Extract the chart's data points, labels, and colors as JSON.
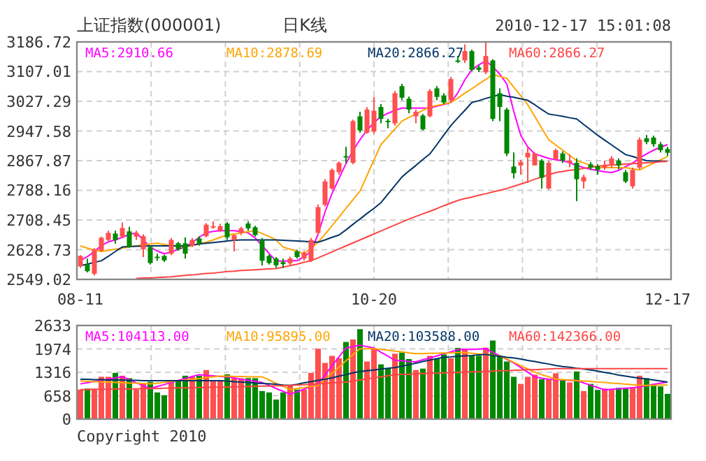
{
  "chart_data": [
    {
      "type": "candlestick",
      "title": "上证指数(000001)",
      "subtitle": "日K线",
      "annotations": [
        "2010-12-17 15:01:08"
      ],
      "categories": [
        "08-11",
        null,
        null,
        null,
        null,
        null,
        null,
        null,
        null,
        null,
        null,
        null,
        null,
        null,
        null,
        null,
        null,
        null,
        null,
        null,
        null,
        null,
        null,
        null,
        null,
        null,
        null,
        null,
        null,
        null,
        null,
        null,
        null,
        null,
        null,
        null,
        null,
        null,
        null,
        null,
        null,
        null,
        "10-20",
        null,
        null,
        null,
        null,
        null,
        null,
        null,
        null,
        null,
        null,
        null,
        null,
        null,
        null,
        null,
        null,
        null,
        null,
        null,
        null,
        null,
        null,
        null,
        null,
        null,
        null,
        null,
        null,
        null,
        null,
        null,
        null,
        null,
        null,
        null,
        null,
        null,
        null,
        null,
        null,
        null,
        "12-17"
      ],
      "ylim": [
        2549.02,
        3186.72
      ],
      "yticks": [
        2549.02,
        2628.73,
        2708.45,
        2788.16,
        2867.87,
        2947.58,
        3027.29,
        3107.01,
        3186.72
      ],
      "grid": true,
      "legend": "top",
      "ohlc": [
        [
          2584,
          2614,
          2580,
          2612
        ],
        [
          2589,
          2605,
          2568,
          2571
        ],
        [
          2564,
          2633,
          2560,
          2630
        ],
        [
          2626,
          2664,
          2624,
          2661
        ],
        [
          2655,
          2680,
          2651,
          2674
        ],
        [
          2672,
          2680,
          2645,
          2655
        ],
        [
          2664,
          2702,
          2660,
          2687
        ],
        [
          2678,
          2690,
          2634,
          2636
        ],
        [
          2664,
          2680,
          2655,
          2674
        ],
        [
          2630,
          2670,
          2609,
          2665
        ],
        [
          2636,
          2640,
          2589,
          2593
        ],
        [
          2610,
          2618,
          2599,
          2608
        ],
        [
          2612,
          2615,
          2596,
          2600
        ],
        [
          2618,
          2660,
          2614,
          2655
        ],
        [
          2646,
          2650,
          2626,
          2630
        ],
        [
          2646,
          2662,
          2605,
          2618
        ],
        [
          2639,
          2660,
          2636,
          2655
        ],
        [
          2659,
          2665,
          2640,
          2646
        ],
        [
          2665,
          2700,
          2662,
          2696
        ],
        [
          2689,
          2705,
          2685,
          2692
        ],
        [
          2680,
          2698,
          2676,
          2692
        ],
        [
          2699,
          2703,
          2655,
          2662
        ],
        [
          2655,
          2670,
          2624,
          2668
        ],
        [
          2674,
          2690,
          2668,
          2686
        ],
        [
          2699,
          2705,
          2680,
          2686
        ],
        [
          2689,
          2693,
          2664,
          2668
        ],
        [
          2655,
          2660,
          2586,
          2599
        ],
        [
          2612,
          2615,
          2589,
          2593
        ],
        [
          2605,
          2609,
          2580,
          2587
        ],
        [
          2595,
          2605,
          2580,
          2590
        ],
        [
          2592,
          2610,
          2588,
          2605
        ],
        [
          2624,
          2628,
          2605,
          2609
        ],
        [
          2605,
          2625,
          2600,
          2620
        ],
        [
          2599,
          2660,
          2596,
          2655
        ],
        [
          2674,
          2750,
          2670,
          2743
        ],
        [
          2749,
          2818,
          2745,
          2812
        ],
        [
          2793,
          2847,
          2790,
          2843
        ],
        [
          2837,
          2866,
          2830,
          2862
        ],
        [
          2880,
          2905,
          2862,
          2877
        ],
        [
          2862,
          2978,
          2858,
          2974
        ],
        [
          2987,
          2999,
          2943,
          2949
        ],
        [
          2943,
          3012,
          2940,
          3005
        ],
        [
          2946,
          3039,
          2940,
          3002
        ],
        [
          3012,
          3020,
          2968,
          2980
        ],
        [
          2975,
          2980,
          2955,
          2973
        ],
        [
          2968,
          3055,
          2962,
          3049
        ],
        [
          3068,
          3074,
          3030,
          3037
        ],
        [
          3034,
          3040,
          2995,
          3005
        ],
        [
          2987,
          3005,
          2968,
          2999
        ],
        [
          2989,
          2993,
          2949,
          2952
        ],
        [
          2987,
          3060,
          2984,
          3055
        ],
        [
          3062,
          3068,
          3030,
          3039
        ],
        [
          3043,
          3049,
          3020,
          3024
        ],
        [
          3030,
          3093,
          3024,
          3087
        ],
        [
          3137,
          3149,
          3130,
          3134
        ],
        [
          3137,
          3180,
          3130,
          3162
        ],
        [
          3162,
          3166,
          3108,
          3112
        ],
        [
          3118,
          3124,
          3106,
          3112
        ],
        [
          3105,
          3186,
          3100,
          3149
        ],
        [
          3137,
          3140,
          2974,
          2980
        ],
        [
          3049,
          3062,
          2974,
          3012
        ],
        [
          3005,
          3010,
          2880,
          2887
        ],
        [
          2852,
          2890,
          2820,
          2834
        ],
        [
          2855,
          2870,
          2830,
          2864
        ],
        [
          2877,
          2905,
          2808,
          2889
        ],
        [
          2855,
          2890,
          2855,
          2887
        ],
        [
          2868,
          2872,
          2793,
          2822
        ],
        [
          2793,
          2868,
          2790,
          2862
        ],
        [
          2872,
          2900,
          2868,
          2896
        ],
        [
          2887,
          2893,
          2862,
          2868
        ],
        [
          2862,
          2885,
          2850,
          2868
        ],
        [
          2862,
          2874,
          2759,
          2818
        ],
        [
          2812,
          2830,
          2793,
          2824
        ],
        [
          2858,
          2864,
          2843,
          2849
        ],
        [
          2853,
          2858,
          2830,
          2843
        ],
        [
          2849,
          2868,
          2843,
          2855
        ],
        [
          2855,
          2880,
          2849,
          2874
        ],
        [
          2868,
          2874,
          2845,
          2855
        ],
        [
          2837,
          2843,
          2808,
          2812
        ],
        [
          2799,
          2849,
          2793,
          2843
        ],
        [
          2849,
          2930,
          2845,
          2924
        ],
        [
          2928,
          2937,
          2912,
          2918
        ],
        [
          2930,
          2935,
          2905,
          2912
        ],
        [
          2912,
          2918,
          2890,
          2896
        ],
        [
          2899,
          2905,
          2880,
          2889
        ]
      ],
      "colors": [
        "#ff4f4f",
        "#008800",
        "#ff4f4f",
        "#ff4f4f",
        "#ff4f4f",
        "#008800",
        "#ff4f4f",
        "#008800",
        "#ff4f4f",
        "#ff4f4f",
        "#008800",
        "#008800",
        "#008800",
        "#ff4f4f",
        "#008800",
        "#008800",
        "#ff4f4f",
        "#008800",
        "#ff4f4f",
        "#ff4f4f",
        "#ff4f4f",
        "#008800",
        "#ff4f4f",
        "#ff4f4f",
        "#008800",
        "#008800",
        "#008800",
        "#008800",
        "#008800",
        "#008800",
        "#ff4f4f",
        "#008800",
        "#ff4f4f",
        "#ff4f4f",
        "#ff4f4f",
        "#ff4f4f",
        "#ff4f4f",
        "#ff4f4f",
        "#008800",
        "#ff4f4f",
        "#008800",
        "#ff4f4f",
        "#ff4f4f",
        "#008800",
        "#008800",
        "#ff4f4f",
        "#008800",
        "#008800",
        "#ff4f4f",
        "#008800",
        "#ff4f4f",
        "#008800",
        "#008800",
        "#ff4f4f",
        "#008800",
        "#ff4f4f",
        "#008800",
        "#008800",
        "#ff4f4f",
        "#008800",
        "#008800",
        "#008800",
        "#008800",
        "#ff4f4f",
        "#ff4f4f",
        "#ff4f4f",
        "#008800",
        "#ff4f4f",
        "#ff4f4f",
        "#008800",
        "#ff4f4f",
        "#008800",
        "#ff4f4f",
        "#008800",
        "#008800",
        "#ff4f4f",
        "#ff4f4f",
        "#008800",
        "#008800",
        "#ff4f4f",
        "#ff4f4f",
        "#008800",
        "#008800",
        "#008800",
        "#008800"
      ],
      "series": [
        {
          "type": "line",
          "name": "MA5:2910.66",
          "color": "#ff00ff",
          "values": [
            2600,
            2610,
            2624,
            2640,
            2650,
            2655,
            2662,
            2670,
            2674,
            2655,
            2636,
            2625,
            2618,
            2622,
            2630,
            2636,
            2648,
            2662,
            2674,
            2678,
            2680,
            2680,
            2680,
            2677,
            2674,
            2660,
            2640,
            2618,
            2599,
            2598,
            2599,
            2599,
            2610,
            2624,
            2670,
            2730,
            2780,
            2820,
            2860,
            2895,
            2924,
            2950,
            2970,
            2986,
            2995,
            3003,
            3009,
            3009,
            3009,
            3009,
            3009,
            3014,
            3019,
            3024,
            3050,
            3085,
            3112,
            3125,
            3136,
            3120,
            3100,
            3074,
            3000,
            2936,
            2905,
            2886,
            2880,
            2874,
            2870,
            2868,
            2862,
            2855,
            2849,
            2845,
            2841,
            2838,
            2836,
            2842,
            2852,
            2861,
            2875,
            2886,
            2896,
            2904,
            2911
          ]
        },
        {
          "type": "line",
          "name": "MA10:2878.69",
          "color": "#ffa500",
          "values": [
            2639,
            2633,
            2628,
            2624,
            2627,
            2630,
            2633,
            2636,
            2639,
            2642,
            2644,
            2646,
            2643,
            2640,
            2638,
            2636,
            2640,
            2645,
            2649,
            2655,
            2662,
            2668,
            2671,
            2674,
            2677,
            2680,
            2672,
            2664,
            2655,
            2636,
            2630,
            2624,
            2618,
            2632,
            2649,
            2670,
            2693,
            2716,
            2740,
            2763,
            2786,
            2828,
            2870,
            2911,
            2932,
            2953,
            2974,
            2984,
            2993,
            3003,
            3012,
            3016,
            3020,
            3024,
            3036,
            3049,
            3061,
            3074,
            3086,
            3099,
            3094,
            3089,
            3065,
            3042,
            3018,
            2987,
            2955,
            2924,
            2910,
            2896,
            2882,
            2868,
            2862,
            2855,
            2849,
            2849,
            2849,
            2849,
            2849,
            2846,
            2843,
            2852,
            2861,
            2870,
            2879
          ]
        },
        {
          "type": "line",
          "name": "MA20:2866.27",
          "color": "#003366",
          "values": [
            2586,
            2590,
            2595,
            2599,
            2611,
            2624,
            2636,
            2637,
            2638,
            2638,
            2639,
            2639,
            2639,
            2639,
            2639,
            2639,
            2641,
            2644,
            2646,
            2648,
            2650,
            2652,
            2654,
            2655,
            2655,
            2655,
            2655,
            2655,
            2655,
            2654,
            2653,
            2652,
            2651,
            2650,
            2649,
            2655,
            2662,
            2668,
            2682,
            2697,
            2711,
            2726,
            2740,
            2755,
            2778,
            2801,
            2824,
            2840,
            2855,
            2871,
            2886,
            2911,
            2937,
            2962,
            2983,
            3003,
            3024,
            3029,
            3035,
            3040,
            3045,
            3041,
            3038,
            3034,
            3030,
            3018,
            3005,
            2993,
            2990,
            2987,
            2983,
            2980,
            2965,
            2951,
            2936,
            2923,
            2910,
            2897,
            2884,
            2879,
            2873,
            2868,
            2867,
            2867,
            2866
          ]
        },
        {
          "type": "line",
          "name": "MA60:2866.27",
          "color": "#ff4444",
          "values": [
            null,
            null,
            null,
            null,
            null,
            null,
            null,
            null,
            2552,
            2553,
            2553,
            2554,
            2555,
            2556,
            2558,
            2560,
            2561,
            2563,
            2565,
            2566,
            2568,
            2570,
            2571,
            2573,
            2574,
            2575,
            2576,
            2577,
            2578,
            2582,
            2586,
            2590,
            2595,
            2599,
            2607,
            2615,
            2623,
            2631,
            2639,
            2647,
            2655,
            2663,
            2671,
            2679,
            2687,
            2695,
            2703,
            2711,
            2718,
            2725,
            2732,
            2739,
            2747,
            2754,
            2761,
            2766,
            2770,
            2775,
            2779,
            2784,
            2788,
            2793,
            2799,
            2805,
            2811,
            2818,
            2824,
            2830,
            2836,
            2839,
            2842,
            2844,
            2847,
            2850,
            2853,
            2855,
            2856,
            2857,
            2859,
            2860,
            2861,
            2862,
            2863,
            2865,
            2866
          ]
        }
      ]
    },
    {
      "type": "bar",
      "annotations": [
        "Copyright 2010"
      ],
      "categories": [
        null,
        null,
        null,
        null,
        null,
        null,
        null,
        null,
        null,
        null,
        null,
        null,
        null,
        null,
        null,
        null,
        null,
        null,
        null,
        null,
        null,
        null,
        null,
        null,
        null,
        null,
        null,
        null,
        null,
        null,
        null,
        null,
        null,
        null,
        null,
        null,
        null,
        null,
        null,
        null,
        null,
        null,
        null,
        null,
        null,
        null,
        null,
        null,
        null,
        null,
        null,
        null,
        null,
        null,
        null,
        null,
        null,
        null,
        null,
        null,
        null,
        null,
        null,
        null,
        null,
        null,
        null,
        null,
        null,
        null,
        null,
        null,
        null,
        null,
        null,
        null,
        null,
        null,
        null,
        null,
        null,
        null,
        null,
        null,
        null
      ],
      "ylim": [
        0,
        2633
      ],
      "yticks": [
        0,
        658,
        1316,
        1974,
        2633
      ],
      "tick_labels": "y",
      "grid": true,
      "legend": "top",
      "series": [
        {
          "type": "bar",
          "values": [
            830,
            860,
            830,
            1190,
            1190,
            1300,
            1220,
            1150,
            830,
            990,
            1050,
            750,
            670,
            1070,
            1070,
            1220,
            1190,
            1220,
            1380,
            1070,
            1070,
            1260,
            1150,
            1150,
            1150,
            1150,
            790,
            750,
            550,
            750,
            950,
            830,
            830,
            1300,
            1980,
            1580,
            1780,
            1710,
            2170,
            2240,
            2530,
            1620,
            1980,
            1540,
            1420,
            1840,
            1870,
            1690,
            1380,
            1420,
            1780,
            1690,
            1820,
            1710,
            2000,
            1980,
            1780,
            1780,
            2010,
            2210,
            1780,
            1620,
            1190,
            990,
            1190,
            1250,
            1120,
            1120,
            1290,
            1080,
            1030,
            1340,
            790,
            990,
            820,
            860,
            830,
            880,
            860,
            900,
            1220,
            1150,
            990,
            920,
            710
          ],
          "colors": [
            "#ff4f4f",
            "#008800",
            "#ff4f4f",
            "#ff4f4f",
            "#ff4f4f",
            "#008800",
            "#ff4f4f",
            "#008800",
            "#ff4f4f",
            "#ff4f4f",
            "#008800",
            "#008800",
            "#008800",
            "#ff4f4f",
            "#008800",
            "#008800",
            "#ff4f4f",
            "#008800",
            "#ff4f4f",
            "#ff4f4f",
            "#ff4f4f",
            "#008800",
            "#ff4f4f",
            "#ff4f4f",
            "#008800",
            "#008800",
            "#008800",
            "#008800",
            "#008800",
            "#008800",
            "#ff4f4f",
            "#008800",
            "#ff4f4f",
            "#ff4f4f",
            "#ff4f4f",
            "#ff4f4f",
            "#ff4f4f",
            "#ff4f4f",
            "#008800",
            "#ff4f4f",
            "#008800",
            "#ff4f4f",
            "#ff4f4f",
            "#008800",
            "#008800",
            "#ff4f4f",
            "#008800",
            "#008800",
            "#ff4f4f",
            "#008800",
            "#ff4f4f",
            "#008800",
            "#008800",
            "#ff4f4f",
            "#008800",
            "#ff4f4f",
            "#008800",
            "#008800",
            "#ff4f4f",
            "#008800",
            "#008800",
            "#008800",
            "#008800",
            "#ff4f4f",
            "#ff4f4f",
            "#ff4f4f",
            "#008800",
            "#ff4f4f",
            "#ff4f4f",
            "#008800",
            "#ff4f4f",
            "#008800",
            "#ff4f4f",
            "#008800",
            "#008800",
            "#ff4f4f",
            "#ff4f4f",
            "#008800",
            "#008800",
            "#ff4f4f",
            "#ff4f4f",
            "#008800",
            "#008800",
            "#008800",
            "#008800"
          ]
        },
        {
          "type": "line",
          "name": "MA5:104113.00",
          "color": "#ff00ff",
          "values": [
            990,
            1020,
            1060,
            1090,
            1120,
            1160,
            1190,
            1110,
            1020,
            940,
            860,
            920,
            970,
            1030,
            1090,
            1140,
            1200,
            1250,
            1230,
            1220,
            1200,
            1190,
            1160,
            1120,
            1090,
            1060,
            1030,
            950,
            860,
            780,
            700,
            770,
            840,
            920,
            990,
            1240,
            1500,
            1750,
            2000,
            2040,
            2080,
            2040,
            2000,
            1880,
            1770,
            1650,
            1640,
            1620,
            1610,
            1670,
            1720,
            1780,
            1840,
            1890,
            1950,
            1960,
            1960,
            1970,
            1980,
            1880,
            1780,
            1680,
            1580,
            1450,
            1320,
            1190,
            1150,
            1120,
            1110,
            1100,
            1090,
            1080,
            1020,
            950,
            890,
            820,
            840,
            850,
            870,
            880,
            910,
            940,
            980,
            1010,
            1040
          ]
        },
        {
          "type": "line",
          "name": "MA10:95895.00",
          "color": "#ffa500",
          "values": [
            1070,
            1060,
            1050,
            1050,
            1040,
            1030,
            1020,
            1010,
            1010,
            1000,
            990,
            1010,
            1030,
            1060,
            1080,
            1100,
            1120,
            1140,
            1170,
            1190,
            1210,
            1210,
            1200,
            1200,
            1190,
            1190,
            1190,
            1100,
            1010,
            920,
            830,
            860,
            890,
            920,
            950,
            1120,
            1290,
            1460,
            1640,
            1810,
            1980,
            1980,
            1980,
            1960,
            1940,
            1910,
            1890,
            1860,
            1840,
            1840,
            1850,
            1850,
            1860,
            1860,
            1870,
            1870,
            1850,
            1830,
            1820,
            1800,
            1780,
            1690,
            1600,
            1500,
            1410,
            1320,
            1250,
            1190,
            1120,
            1110,
            1100,
            1080,
            1070,
            1060,
            1040,
            1030,
            1010,
            1000,
            980,
            970,
            950,
            950,
            950,
            960,
            960
          ]
        },
        {
          "type": "line",
          "name": "MA20:103588.00",
          "color": "#003366",
          "values": [
            1120,
            1120,
            1110,
            1110,
            1100,
            1100,
            1100,
            1090,
            1090,
            1080,
            1080,
            1080,
            1080,
            1080,
            1080,
            1080,
            1080,
            1080,
            1080,
            1080,
            1080,
            1070,
            1050,
            1040,
            1030,
            1010,
            1000,
            990,
            980,
            960,
            950,
            980,
            1020,
            1050,
            1090,
            1120,
            1160,
            1210,
            1250,
            1300,
            1340,
            1360,
            1380,
            1410,
            1430,
            1450,
            1490,
            1530,
            1570,
            1620,
            1660,
            1700,
            1740,
            1750,
            1770,
            1780,
            1790,
            1810,
            1820,
            1790,
            1770,
            1740,
            1720,
            1690,
            1650,
            1620,
            1580,
            1550,
            1510,
            1480,
            1460,
            1430,
            1410,
            1380,
            1350,
            1310,
            1280,
            1240,
            1210,
            1180,
            1150,
            1130,
            1100,
            1070,
            1040
          ]
        },
        {
          "type": "line",
          "name": "MA60:142366.00",
          "color": "#ff4444",
          "values": [
            830,
            830,
            840,
            840,
            840,
            850,
            850,
            850,
            850,
            860,
            860,
            860,
            870,
            870,
            880,
            880,
            880,
            890,
            890,
            900,
            900,
            900,
            910,
            910,
            920,
            920,
            930,
            930,
            940,
            940,
            950,
            960,
            970,
            980,
            990,
            1000,
            1020,
            1030,
            1040,
            1070,
            1100,
            1130,
            1160,
            1190,
            1220,
            1250,
            1260,
            1260,
            1270,
            1280,
            1290,
            1290,
            1300,
            1310,
            1310,
            1320,
            1330,
            1330,
            1340,
            1350,
            1360,
            1360,
            1370,
            1380,
            1390,
            1390,
            1400,
            1410,
            1420,
            1420,
            1420,
            1420,
            1420,
            1420,
            1420,
            1420,
            1420,
            1420,
            1420,
            1420,
            1420,
            1420,
            1420,
            1420,
            1420
          ]
        }
      ]
    }
  ]
}
